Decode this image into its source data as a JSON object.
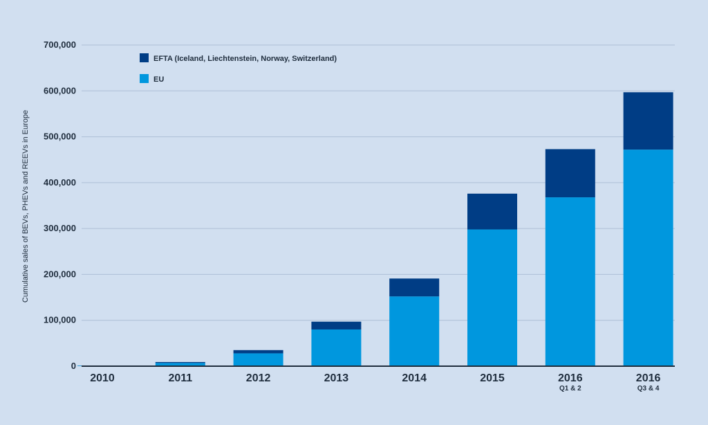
{
  "chart_data": {
    "type": "bar",
    "stacked": true,
    "title": "",
    "xlabel": "",
    "ylabel": "Cumulative sales of BEVs, PHEVs and REEVs in Europe",
    "ylim": [
      0,
      700000
    ],
    "yticks": [
      0,
      100000,
      200000,
      300000,
      400000,
      500000,
      600000,
      700000
    ],
    "ytick_labels": [
      "0",
      "100,000",
      "200,000",
      "300,000",
      "400,000",
      "500,000",
      "600,000",
      "700,000"
    ],
    "grid": true,
    "categories": [
      "2010",
      "2011",
      "2012",
      "2013",
      "2014",
      "2015",
      "2016",
      "2016"
    ],
    "category_sublabels": [
      "",
      "",
      "",
      "",
      "",
      "",
      "Q1 & 2",
      "Q3 & 4"
    ],
    "series": [
      {
        "name": "EU",
        "color": "#0097de",
        "values": [
          1000,
          7000,
          28000,
          80000,
          152000,
          298000,
          368000,
          472000
        ]
      },
      {
        "name": "EFTA (Iceland, Liechtenstein, Norway, Switzerland)",
        "color": "#003d85",
        "values": [
          200,
          2000,
          7000,
          17000,
          39000,
          78000,
          105000,
          125000
        ]
      }
    ],
    "legend": {
      "placement": "top-left",
      "order": [
        "EFTA (Iceland, Liechtenstein, Norway, Switzerland)",
        "EU"
      ]
    }
  }
}
